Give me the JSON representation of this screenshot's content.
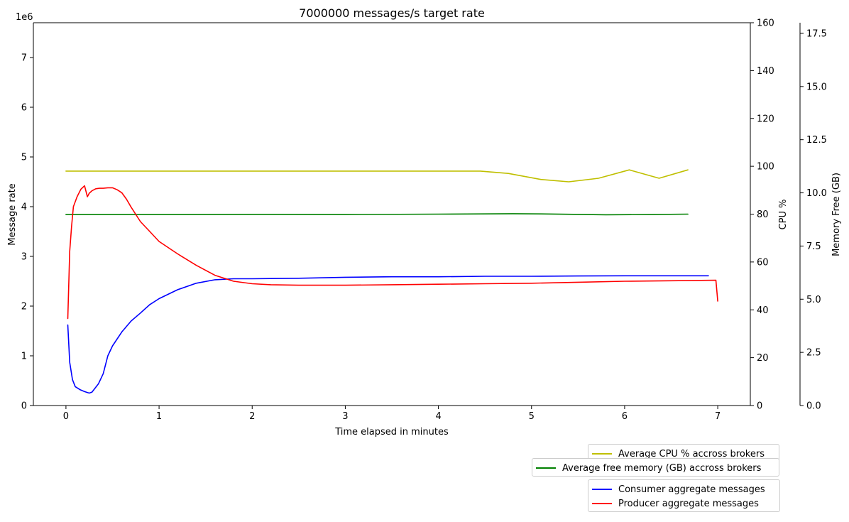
{
  "chart_data": {
    "type": "line",
    "title": "7000000 messages/s target rate",
    "xlabel": "Time elapsed in minutes",
    "xlim": [
      -0.35,
      7.35
    ],
    "x_ticks": [
      0,
      1,
      2,
      3,
      4,
      5,
      6,
      7
    ],
    "axes": [
      {
        "id": "rate",
        "position": "left",
        "label": "Message rate",
        "offset_text": "1e6",
        "ylim": [
          0,
          7700000
        ],
        "ticks": [
          0,
          1000000,
          2000000,
          3000000,
          4000000,
          5000000,
          6000000,
          7000000
        ],
        "tick_labels": [
          "0",
          "1",
          "2",
          "3",
          "4",
          "5",
          "6",
          "7"
        ]
      },
      {
        "id": "cpu",
        "position": "right",
        "label": "CPU %",
        "ylim": [
          0,
          160
        ],
        "ticks": [
          0,
          20,
          40,
          60,
          80,
          100,
          120,
          140,
          160
        ],
        "tick_labels": [
          "0",
          "20",
          "40",
          "60",
          "80",
          "100",
          "120",
          "140",
          "160"
        ]
      },
      {
        "id": "mem",
        "position": "right-outer",
        "label": "Memory Free (GB)",
        "ylim": [
          0,
          18
        ],
        "ticks": [
          0,
          2.5,
          5,
          7.5,
          10,
          12.5,
          15,
          17.5
        ],
        "tick_labels": [
          "0.0",
          "2.5",
          "5.0",
          "7.5",
          "10.0",
          "12.5",
          "15.0",
          "17.5"
        ]
      }
    ],
    "series": [
      {
        "name": "Average CPU % accross brokers",
        "axis": "cpu",
        "color": "#bfbf00",
        "x": [
          0,
          1,
          2,
          3,
          4,
          4.45,
          4.75,
          5.1,
          5.4,
          5.72,
          6.05,
          6.37,
          6.68
        ],
        "values": [
          98,
          98,
          98,
          98,
          98,
          98,
          97,
          94.5,
          93.5,
          95,
          98.5,
          95,
          98.5
        ]
      },
      {
        "name": "Average free memory (GB) accross brokers",
        "axis": "mem",
        "color": "#008000",
        "x": [
          0,
          1,
          2,
          3,
          4,
          4.8,
          5.1,
          5.8,
          6.3,
          6.68
        ],
        "values": [
          8.98,
          8.98,
          8.99,
          8.98,
          9.0,
          9.02,
          9.01,
          8.97,
          8.98,
          9.0
        ]
      },
      {
        "name": "Consumer aggregate messages",
        "axis": "rate",
        "color": "#0000ff",
        "x": [
          0.02,
          0.04,
          0.07,
          0.1,
          0.15,
          0.2,
          0.25,
          0.28,
          0.3,
          0.35,
          0.4,
          0.45,
          0.5,
          0.6,
          0.7,
          0.8,
          0.9,
          1.0,
          1.2,
          1.4,
          1.6,
          1.8,
          2.0,
          2.5,
          3.0,
          3.5,
          4.0,
          4.5,
          5.0,
          5.5,
          6.0,
          6.5,
          6.9
        ],
        "values": [
          1620000,
          870000,
          520000,
          380000,
          320000,
          280000,
          250000,
          270000,
          320000,
          440000,
          640000,
          1000000,
          1200000,
          1480000,
          1700000,
          1860000,
          2030000,
          2150000,
          2330000,
          2460000,
          2530000,
          2550000,
          2550000,
          2560000,
          2580000,
          2590000,
          2590000,
          2600000,
          2600000,
          2605000,
          2610000,
          2610000,
          2610000
        ]
      },
      {
        "name": "Producer aggregate messages",
        "axis": "rate",
        "color": "#ff0000",
        "x": [
          0.02,
          0.04,
          0.06,
          0.08,
          0.12,
          0.16,
          0.2,
          0.23,
          0.25,
          0.28,
          0.32,
          0.36,
          0.4,
          0.45,
          0.5,
          0.55,
          0.6,
          0.65,
          0.7,
          0.8,
          0.9,
          1.0,
          1.2,
          1.4,
          1.6,
          1.8,
          2.0,
          2.2,
          2.5,
          3.0,
          3.5,
          4.0,
          4.5,
          5.0,
          5.5,
          6.0,
          6.5,
          6.98,
          7.0
        ],
        "values": [
          1750000,
          3100000,
          3600000,
          4000000,
          4200000,
          4350000,
          4420000,
          4200000,
          4270000,
          4320000,
          4360000,
          4370000,
          4370000,
          4380000,
          4380000,
          4340000,
          4280000,
          4150000,
          3990000,
          3700000,
          3500000,
          3300000,
          3050000,
          2820000,
          2620000,
          2500000,
          2450000,
          2430000,
          2420000,
          2420000,
          2430000,
          2440000,
          2450000,
          2460000,
          2480000,
          2500000,
          2510000,
          2520000,
          2100000
        ]
      }
    ],
    "legends": [
      {
        "placement": "bottom-right",
        "entries": [
          "Average CPU % accross brokers"
        ]
      },
      {
        "placement": "bottom-right",
        "entries": [
          "Average free memory (GB) accross brokers"
        ]
      },
      {
        "placement": "bottom-right",
        "entries": [
          "Consumer aggregate messages",
          "Producer aggregate messages"
        ]
      }
    ],
    "grid": false
  }
}
